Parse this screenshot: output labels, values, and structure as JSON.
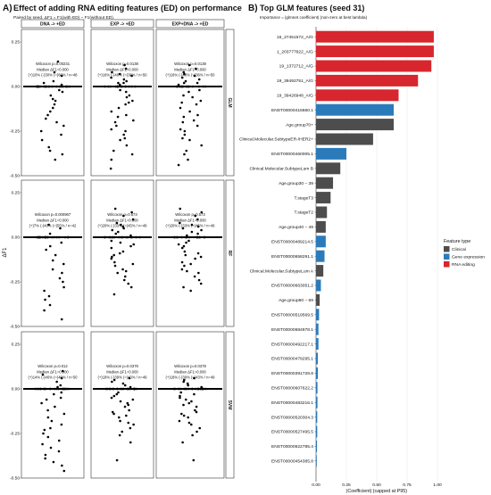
{
  "chart_data": [
    {
      "type": "scatter",
      "panel_label": "A)",
      "title": "Effect of adding RNA editing features (ED) on performance",
      "subtitle": "Paired by seed. ΔF1 = F1(with ED) − F1(without ED).",
      "ylabel": "ΔF1",
      "columns": [
        "DNA -> +ED",
        "EXP -> +ED",
        "EXP+DNA -> +ED"
      ],
      "rows": [
        "GLM",
        "RF",
        "SVM"
      ],
      "ylim": [
        -0.5,
        0.32
      ],
      "yticks": [
        "0.25",
        "0.00",
        "-0.25",
        "-0.50"
      ],
      "annotations": [
        [
          "Wilcoxon p=0.00231",
          "Median ΔF1=0.000",
          "(+)10% (-)30% (=)60% / n=48"
        ],
        [
          "Wilcoxon p=0.0138",
          "Median ΔF1=0.000",
          "(+)16% (-)48% (=)36% / n=50"
        ],
        [
          "Wilcoxon p=0.0138",
          "Median ΔF1=0.000",
          "(+)16% (-)48% (=)36% / n=50"
        ],
        [
          "Wilcoxon p=0.000967",
          "Median ΔF1=0.000",
          "(+)7% (-)40% (=)55% / n=42"
        ],
        [
          "Wilcoxon p=0.573",
          "Median ΔF1=0.000",
          "(+)20% (-)33% (=)45% / n=49"
        ],
        [
          "Wilcoxon p=0.573",
          "Median ΔF1=0.000",
          "(+)20% (-)33% (=)45% / n=49"
        ],
        [
          "Wilcoxon p=0.012",
          "Median ΔF1=0.000",
          "(+)14% (-)46% (=)40% / n=50"
        ],
        [
          "Wilcoxon p=0.0378",
          "Median ΔF1=0.000",
          "(+)18% (-)39% (=)43% / n=49"
        ],
        [
          "Wilcoxon p=0.0378",
          "Median ΔF1=0.000",
          "(+)18% (-)39% (=)43% / n=49"
        ]
      ],
      "median": 0.0,
      "series": [
        [
          0.14,
          0.08,
          0.06,
          0.03,
          0.02,
          0.01,
          0.0,
          0.0,
          0.0,
          0.0,
          0.0,
          0.0,
          0.0,
          0.0,
          0.0,
          0.0,
          0.0,
          0.0,
          0.0,
          0.0,
          0.0,
          0.0,
          0.0,
          0.0,
          0.0,
          0.0,
          0.0,
          0.0,
          0.0,
          -0.02,
          -0.03,
          -0.05,
          -0.07,
          -0.08,
          -0.1,
          -0.12,
          -0.14,
          -0.16,
          -0.18,
          -0.2,
          -0.22,
          -0.25,
          -0.27,
          -0.3,
          -0.34,
          -0.36,
          -0.38,
          -0.41
        ],
        [
          0.12,
          0.1,
          0.08,
          0.07,
          0.06,
          0.05,
          0.04,
          0.03,
          0.02,
          0.02,
          0.01,
          0.0,
          0.0,
          0.0,
          0.0,
          0.0,
          0.0,
          0.0,
          0.0,
          0.0,
          0.0,
          0.0,
          0.0,
          0.0,
          0.0,
          0.0,
          -0.02,
          -0.03,
          -0.05,
          -0.06,
          -0.08,
          -0.09,
          -0.1,
          -0.12,
          -0.14,
          -0.16,
          -0.17,
          -0.19,
          -0.2,
          -0.22,
          -0.24,
          -0.25,
          -0.27,
          -0.29,
          -0.3,
          -0.33,
          -0.36,
          -0.38,
          -0.41,
          -0.46
        ],
        [
          0.12,
          0.1,
          0.08,
          0.07,
          0.06,
          0.05,
          0.04,
          0.03,
          0.02,
          0.02,
          0.01,
          0.0,
          0.0,
          0.0,
          0.0,
          0.0,
          0.0,
          0.0,
          0.0,
          0.0,
          0.0,
          0.0,
          0.0,
          0.0,
          0.0,
          0.0,
          -0.02,
          -0.03,
          -0.05,
          -0.06,
          -0.08,
          -0.09,
          -0.1,
          -0.12,
          -0.14,
          -0.16,
          -0.17,
          -0.19,
          -0.2,
          -0.22,
          -0.24,
          -0.25,
          -0.27,
          -0.29,
          -0.3,
          -0.33,
          -0.36,
          -0.38,
          -0.41,
          -0.44
        ],
        [
          0.07,
          0.05,
          0.02,
          0.0,
          0.0,
          0.0,
          0.0,
          0.0,
          0.0,
          0.0,
          0.0,
          0.0,
          0.0,
          0.0,
          0.0,
          0.0,
          0.0,
          0.0,
          0.0,
          0.0,
          0.0,
          0.0,
          0.0,
          0.0,
          0.0,
          -0.03,
          -0.05,
          -0.07,
          -0.1,
          -0.13,
          -0.15,
          -0.18,
          -0.2,
          -0.23,
          -0.25,
          -0.28,
          -0.3,
          -0.33,
          -0.35,
          -0.38,
          -0.41,
          -0.46
        ],
        [
          0.16,
          0.14,
          0.12,
          0.1,
          0.08,
          0.07,
          0.06,
          0.05,
          0.04,
          0.03,
          0.02,
          0.01,
          0.0,
          0.0,
          0.0,
          0.0,
          0.0,
          0.0,
          0.0,
          0.0,
          0.0,
          0.0,
          0.0,
          0.0,
          0.0,
          0.0,
          0.0,
          0.0,
          -0.02,
          -0.03,
          -0.04,
          -0.05,
          -0.06,
          -0.08,
          -0.09,
          -0.1,
          -0.11,
          -0.12,
          -0.14,
          -0.15,
          -0.16,
          -0.18,
          -0.19,
          -0.2,
          -0.22,
          -0.24,
          -0.26,
          -0.28,
          -0.32
        ],
        [
          0.16,
          0.14,
          0.12,
          0.1,
          0.08,
          0.07,
          0.06,
          0.05,
          0.04,
          0.03,
          0.02,
          0.01,
          0.0,
          0.0,
          0.0,
          0.0,
          0.0,
          0.0,
          0.0,
          0.0,
          0.0,
          0.0,
          0.0,
          0.0,
          0.0,
          0.0,
          0.0,
          0.0,
          -0.02,
          -0.03,
          -0.04,
          -0.05,
          -0.06,
          -0.08,
          -0.09,
          -0.1,
          -0.11,
          -0.12,
          -0.14,
          -0.15,
          -0.16,
          -0.18,
          -0.19,
          -0.2,
          -0.22,
          -0.24,
          -0.26,
          -0.28,
          -0.3
        ],
        [
          0.1,
          0.08,
          0.06,
          0.04,
          0.02,
          0.01,
          0.0,
          0.0,
          0.0,
          0.0,
          0.0,
          0.0,
          0.0,
          0.0,
          0.0,
          0.0,
          0.0,
          0.0,
          0.0,
          0.0,
          0.0,
          0.0,
          0.0,
          0.0,
          0.0,
          0.0,
          -0.02,
          -0.03,
          -0.05,
          -0.06,
          -0.08,
          -0.1,
          -0.12,
          -0.14,
          -0.16,
          -0.18,
          -0.2,
          -0.22,
          -0.23,
          -0.25,
          -0.27,
          -0.29,
          -0.31,
          -0.33,
          -0.35,
          -0.37,
          -0.39,
          -0.41,
          -0.43,
          -0.46
        ],
        [
          0.06,
          0.05,
          0.04,
          0.03,
          0.02,
          0.01,
          0.0,
          0.0,
          0.0,
          0.0,
          0.0,
          0.0,
          0.0,
          0.0,
          0.0,
          0.0,
          0.0,
          0.0,
          0.0,
          0.0,
          0.0,
          0.0,
          0.0,
          0.0,
          0.0,
          0.0,
          0.0,
          -0.02,
          -0.03,
          -0.04,
          -0.05,
          -0.06,
          -0.07,
          -0.08,
          -0.09,
          -0.1,
          -0.12,
          -0.13,
          -0.14,
          -0.15,
          -0.16,
          -0.18,
          -0.19,
          -0.2,
          -0.22,
          -0.24,
          -0.26,
          -0.3,
          -0.4
        ],
        [
          0.06,
          0.05,
          0.04,
          0.03,
          0.02,
          0.01,
          0.0,
          0.0,
          0.0,
          0.0,
          0.0,
          0.0,
          0.0,
          0.0,
          0.0,
          0.0,
          0.0,
          0.0,
          0.0,
          0.0,
          0.0,
          0.0,
          0.0,
          0.0,
          0.0,
          0.0,
          0.0,
          -0.02,
          -0.03,
          -0.04,
          -0.05,
          -0.06,
          -0.07,
          -0.08,
          -0.09,
          -0.1,
          -0.12,
          -0.13,
          -0.14,
          -0.15,
          -0.16,
          -0.18,
          -0.19,
          -0.2,
          -0.22,
          -0.24,
          -0.26,
          -0.3,
          -0.4
        ]
      ]
    },
    {
      "type": "bar",
      "orientation": "horizontal",
      "panel_label": "B)",
      "title": "Top GLM features (seed 31)",
      "subtitle": "Importance = |glmnet coefficient| (non-zero at best lambda)",
      "xlabel": "|Coefficient| (capped at P95)",
      "xlim": [
        0,
        1.0
      ],
      "xticks": [
        "0.00",
        "0.25",
        "0.50",
        "0.75",
        "1.00"
      ],
      "legend": {
        "title": "Feature type",
        "position": "right",
        "entries": [
          {
            "name": "Clinical",
            "color": "#4d4d4d"
          },
          {
            "name": "Gene expression",
            "color": "#2b7bba"
          },
          {
            "name": "RNA editing",
            "color": "#d7262d"
          }
        ]
      },
      "categories": [
        "16_27451572_A/G",
        "1_203777922_A/G",
        "19_1372712_A/G",
        "19_39492751_A/G",
        "19_39426948_A/G",
        "ENST00000416660.1",
        "Age.group70+",
        "Clinical.Molecular.SubtypeER-/HER2+",
        "ENST00000460005.1",
        "Clinical.Molecular.SubtypeLum B",
        "Age.group30 – 39",
        "T.stageT3",
        "T.stageT2",
        "Age.group40 – 49",
        "ENST00000489214.5",
        "ENST00000658291.1",
        "Clinical.Molecular.SubtypeLum A",
        "ENST00000663051.2",
        "Age.group60 – 69",
        "ENST00000519569.5",
        "ENST00000684978.1",
        "ENST00000492217.1",
        "ENST00000479295.1",
        "ENST00000391728.8",
        "ENST00000607622.2",
        "ENST00000483216.1",
        "ENST00000520304.3",
        "ENST00000527495.5",
        "ENST00000622785.4",
        "ENST00000454385.8"
      ],
      "values": [
        0.97,
        0.97,
        0.95,
        0.84,
        0.68,
        0.64,
        0.64,
        0.47,
        0.25,
        0.2,
        0.14,
        0.12,
        0.09,
        0.08,
        0.08,
        0.07,
        0.06,
        0.04,
        0.03,
        0.025,
        0.02,
        0.02,
        0.015,
        0.015,
        0.012,
        0.012,
        0.01,
        0.01,
        0.008,
        0.006
      ],
      "types": [
        "RNA editing",
        "RNA editing",
        "RNA editing",
        "RNA editing",
        "RNA editing",
        "Gene expression",
        "Clinical",
        "Clinical",
        "Gene expression",
        "Clinical",
        "Clinical",
        "Clinical",
        "Clinical",
        "Clinical",
        "Gene expression",
        "Gene expression",
        "Clinical",
        "Gene expression",
        "Clinical",
        "Gene expression",
        "Gene expression",
        "Gene expression",
        "Gene expression",
        "Gene expression",
        "Gene expression",
        "Gene expression",
        "Gene expression",
        "Gene expression",
        "Gene expression",
        "Gene expression"
      ]
    }
  ]
}
